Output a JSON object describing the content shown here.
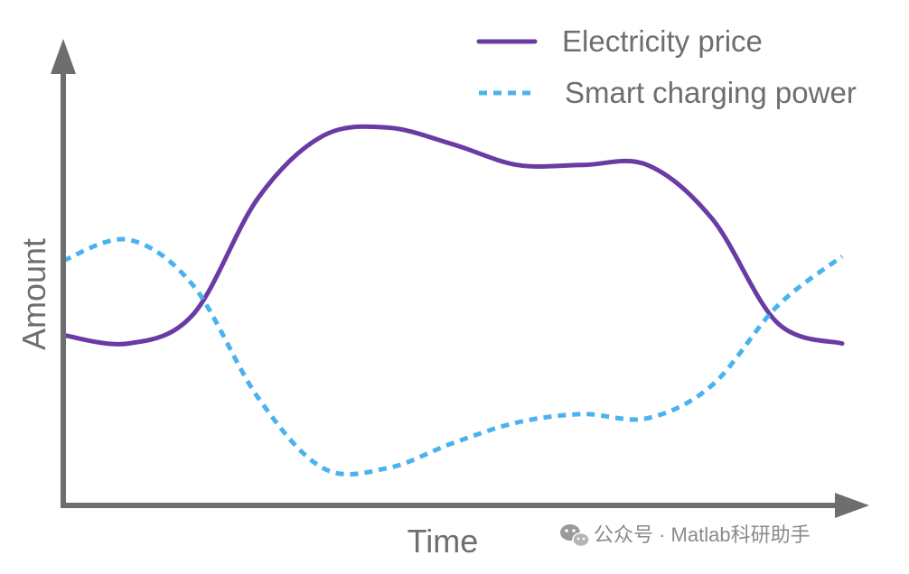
{
  "chart_data": {
    "type": "line",
    "title": "",
    "xlabel": "Time",
    "ylabel": "Amount",
    "grid": false,
    "legend": "top-right",
    "x": [
      0,
      1,
      2,
      3,
      4,
      5,
      6,
      7,
      8,
      9,
      10,
      11,
      12
    ],
    "xlim": [
      0,
      12
    ],
    "ylim": [
      0,
      10
    ],
    "series": [
      {
        "name": "Electricity price",
        "style": "solid",
        "color": "#6a3aa5",
        "values": [
          4.1,
          3.9,
          4.6,
          7.4,
          8.9,
          9.1,
          8.7,
          8.2,
          8.2,
          8.2,
          6.9,
          4.4,
          3.9
        ]
      },
      {
        "name": "Smart charging power",
        "style": "dashed",
        "color": "#4ab3ee",
        "values": [
          5.9,
          6.4,
          5.3,
          2.6,
          0.9,
          0.9,
          1.5,
          2.0,
          2.2,
          2.1,
          2.9,
          4.8,
          6.0
        ]
      }
    ]
  },
  "colors": {
    "axis": "#6e6e6e"
  },
  "watermark": {
    "icon": "wechat-icon",
    "text": "公众号 · Matlab科研助手"
  }
}
